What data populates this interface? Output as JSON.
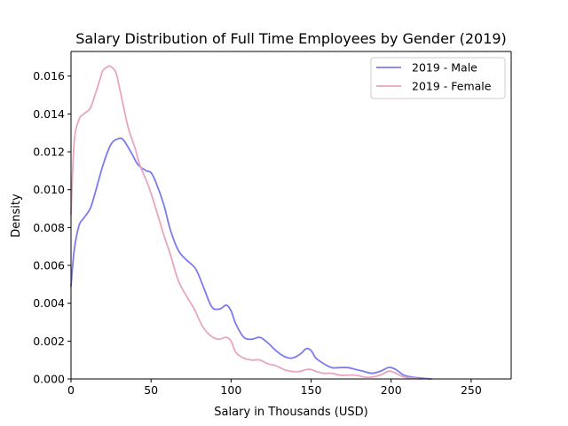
{
  "chart_data": {
    "type": "line",
    "title": "Salary Distribution of Full Time Employees by Gender (2019)",
    "xlabel": "Salary in Thousands (USD)",
    "ylabel": "Density",
    "xlim": [
      0,
      275
    ],
    "ylim": [
      0,
      0.0173
    ],
    "x_ticks": [
      0,
      50,
      100,
      150,
      200,
      250
    ],
    "x_tick_labels": [
      "0",
      "50",
      "100",
      "150",
      "200",
      "250"
    ],
    "y_ticks": [
      0,
      0.002,
      0.004,
      0.006,
      0.008,
      0.01,
      0.012,
      0.014,
      0.016
    ],
    "y_tick_labels": [
      "0.000",
      "0.002",
      "0.004",
      "0.006",
      "0.008",
      "0.010",
      "0.012",
      "0.014",
      "0.016"
    ],
    "grid": false,
    "legend_position": "top-right",
    "series": [
      {
        "name": "2019 - Male",
        "color": "#7b7bf0",
        "x": [
          0,
          2,
          5,
          8,
          12,
          15,
          20,
          25,
          30,
          33,
          38,
          42,
          47,
          50,
          53,
          58,
          62,
          67,
          72,
          78,
          83,
          88,
          93,
          97,
          100,
          103,
          108,
          113,
          118,
          123,
          128,
          133,
          138,
          143,
          147,
          150,
          153,
          158,
          163,
          168,
          173,
          178,
          183,
          188,
          193,
          198,
          200,
          203,
          208,
          213,
          218,
          223,
          225
        ],
        "y": [
          0.0049,
          0.0068,
          0.0081,
          0.0085,
          0.009,
          0.0098,
          0.0113,
          0.0124,
          0.0127,
          0.0126,
          0.0119,
          0.0113,
          0.011,
          0.0109,
          0.0104,
          0.0092,
          0.0079,
          0.0068,
          0.0063,
          0.0058,
          0.0048,
          0.0038,
          0.0037,
          0.0039,
          0.0036,
          0.0029,
          0.0022,
          0.0021,
          0.0022,
          0.0019,
          0.0015,
          0.0012,
          0.0011,
          0.0013,
          0.0016,
          0.0015,
          0.0011,
          0.0008,
          0.0006,
          0.0006,
          0.0006,
          0.0005,
          0.0004,
          0.0003,
          0.0004,
          0.0006,
          0.0006,
          0.0005,
          0.0002,
          0.0001,
          5e-05,
          1e-05,
          0.0
        ]
      },
      {
        "name": "2019 - Female",
        "color": "#e8a5c0",
        "x": [
          0,
          2,
          5,
          8,
          12,
          15,
          18,
          20,
          23,
          25,
          28,
          30,
          33,
          36,
          40,
          43,
          47,
          50,
          53,
          58,
          62,
          67,
          72,
          77,
          82,
          87,
          92,
          97,
          100,
          103,
          108,
          113,
          118,
          123,
          128,
          133,
          138,
          143,
          147,
          150,
          153,
          158,
          163,
          168,
          173,
          178,
          183,
          188,
          193,
          198,
          200,
          203,
          208,
          213,
          218
        ],
        "y": [
          0.0087,
          0.0125,
          0.0137,
          0.014,
          0.0143,
          0.015,
          0.0158,
          0.0163,
          0.0165,
          0.0165,
          0.0162,
          0.0155,
          0.0143,
          0.0132,
          0.0122,
          0.0113,
          0.0105,
          0.0098,
          0.009,
          0.0076,
          0.0066,
          0.0052,
          0.0044,
          0.0037,
          0.0028,
          0.0023,
          0.0021,
          0.0022,
          0.002,
          0.0014,
          0.0011,
          0.001,
          0.001,
          0.0008,
          0.0007,
          0.0005,
          0.0004,
          0.0004,
          0.0005,
          0.0005,
          0.0004,
          0.0003,
          0.0003,
          0.0002,
          0.0002,
          0.0002,
          0.0001,
          0.0001,
          0.0002,
          0.0004,
          0.0004,
          0.0003,
          0.0001,
          5e-05,
          0.0
        ]
      }
    ]
  }
}
